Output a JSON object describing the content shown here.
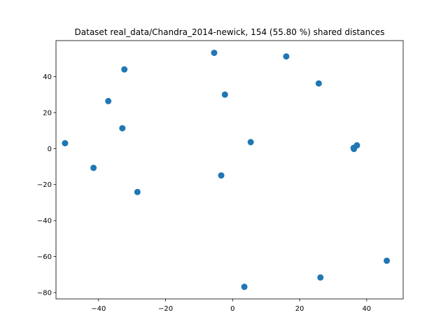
{
  "chart_data": {
    "type": "scatter",
    "title": "Dataset real_data/Chandra_2014-newick, 154 (55.80 %) shared distances",
    "xlabel": "",
    "ylabel": "",
    "xlim": [
      -52.7,
      50.9
    ],
    "ylim": [
      -83.5,
      60.0
    ],
    "grid": false,
    "legend": "none",
    "marker_color": "#1f77b4",
    "x_ticks": [
      -40,
      -20,
      0,
      20,
      40
    ],
    "y_ticks": [
      -80,
      -60,
      -40,
      -20,
      0,
      20,
      40
    ],
    "x_tick_labels": [
      "−40",
      "−20",
      "0",
      "20",
      "40"
    ],
    "y_tick_labels": [
      "−80",
      "−60",
      "−40",
      "−20",
      "0",
      "20",
      "40"
    ],
    "series": [
      {
        "name": "points",
        "points": [
          {
            "x": -50.0,
            "y": 3.0
          },
          {
            "x": -41.5,
            "y": -10.7
          },
          {
            "x": -37.1,
            "y": 26.4
          },
          {
            "x": -32.9,
            "y": 11.3
          },
          {
            "x": -32.3,
            "y": 44.0
          },
          {
            "x": -28.4,
            "y": -24.1
          },
          {
            "x": -5.5,
            "y": 53.2
          },
          {
            "x": -3.4,
            "y": -14.9
          },
          {
            "x": -2.3,
            "y": 30.0
          },
          {
            "x": 3.5,
            "y": -76.8
          },
          {
            "x": 5.4,
            "y": 3.6
          },
          {
            "x": 16.0,
            "y": 51.2
          },
          {
            "x": 25.7,
            "y": 36.2
          },
          {
            "x": 26.2,
            "y": -71.6
          },
          {
            "x": 36.1,
            "y": 0.4
          },
          {
            "x": 36.2,
            "y": -0.2
          },
          {
            "x": 37.1,
            "y": 1.8
          },
          {
            "x": 46.0,
            "y": -62.3
          }
        ]
      }
    ]
  }
}
